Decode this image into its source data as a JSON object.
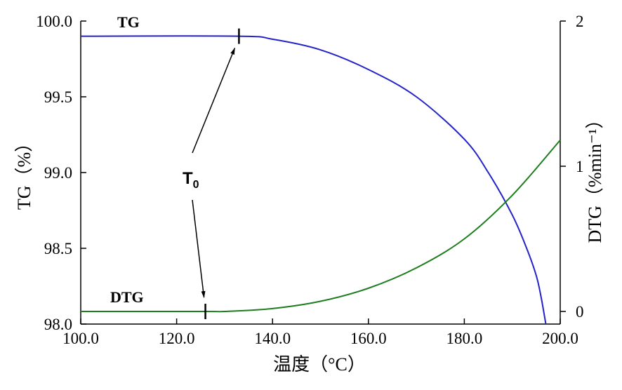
{
  "chart_data": {
    "type": "line",
    "xlabel": "温度（°C）",
    "ylabel_left": "TG（%）",
    "ylabel_right": "DTG（%min⁻¹）",
    "xlim": [
      100,
      200
    ],
    "ylim_left": [
      98.0,
      100.0
    ],
    "ylim_right": [
      0,
      2
    ],
    "x_ticks": [
      "100.0",
      "120.0",
      "140.0",
      "160.0",
      "180.0",
      "200.0"
    ],
    "y_left_ticks": [
      "98.0",
      "98.5",
      "99.0",
      "99.5",
      "100.0"
    ],
    "y_right_ticks": [
      "0",
      "1",
      "2"
    ],
    "series": [
      {
        "name": "TG",
        "axis": "left",
        "color": "#2323c8",
        "x": [
          100,
          133,
          140,
          150,
          160,
          170,
          180,
          185,
          190,
          193,
          195,
          196,
          197
        ],
        "y": [
          99.9,
          99.9,
          99.88,
          99.81,
          99.68,
          99.5,
          99.22,
          99.0,
          98.72,
          98.5,
          98.32,
          98.18,
          98.0
        ]
      },
      {
        "name": "DTG",
        "axis": "right",
        "color": "#1e7d1e",
        "x": [
          100,
          126,
          130,
          140,
          150,
          160,
          170,
          180,
          190,
          200
        ],
        "y": [
          0.0,
          0.0,
          0.0,
          0.02,
          0.07,
          0.16,
          0.3,
          0.5,
          0.8,
          1.18
        ]
      }
    ],
    "annotations": {
      "tg_label": "TG",
      "dtg_label": "DTG",
      "t0_label": "T",
      "t0_subscript": "0",
      "tg_onset_x": 133,
      "dtg_onset_x": 126
    }
  }
}
